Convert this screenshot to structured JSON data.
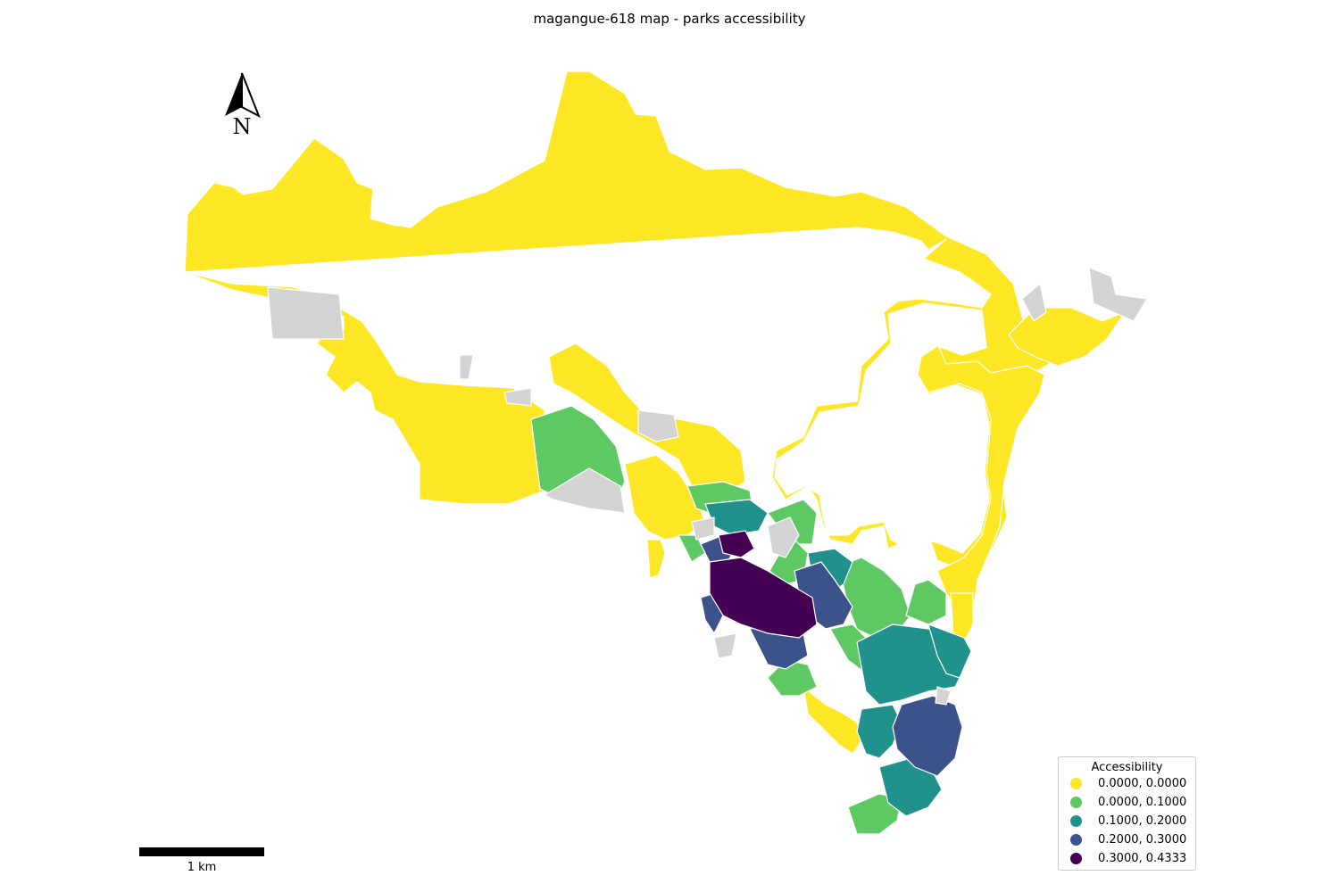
{
  "title": "magangue-618 map - parks accessibility",
  "north_arrow": {
    "label": "N"
  },
  "scale_bar": {
    "label": "1 km"
  },
  "legend": {
    "title": "Accessibility",
    "items": [
      {
        "label": "0.0000, 0.0000",
        "color": "#fde725"
      },
      {
        "label": "0.0000, 0.1000",
        "color": "#5ec962"
      },
      {
        "label": "0.1000, 0.2000",
        "color": "#21918c"
      },
      {
        "label": "0.2000, 0.3000",
        "color": "#3b528b"
      },
      {
        "label": "0.3000, 0.4333",
        "color": "#440154"
      }
    ]
  },
  "no_data_color": "#d3d3d3"
}
